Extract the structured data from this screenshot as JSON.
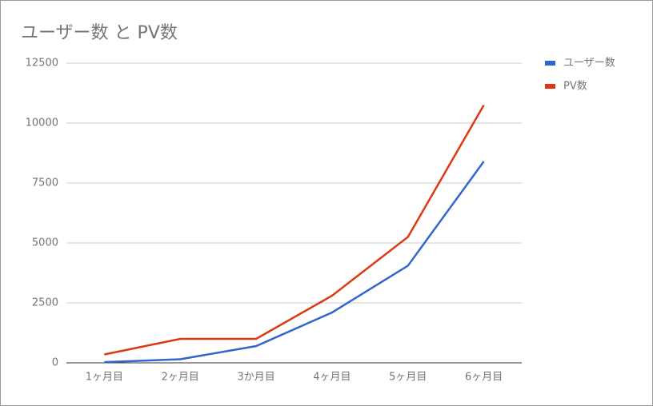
{
  "chart_data": {
    "type": "line",
    "title": "ユーザー数 と PV数",
    "categories": [
      "1ヶ月目",
      "2ヶ月目",
      "3か月目",
      "4ヶ月目",
      "5ヶ月目",
      "6ヶ月目"
    ],
    "series": [
      {
        "name": "ユーザー数",
        "color": "#3366cc",
        "values": [
          30,
          150,
          700,
          2100,
          4050,
          8400
        ]
      },
      {
        "name": "PV数",
        "color": "#dc3912",
        "values": [
          350,
          1000,
          1000,
          2800,
          5250,
          10750
        ]
      }
    ],
    "ylim": [
      0,
      12500
    ],
    "yticks": [
      0,
      2500,
      5000,
      7500,
      10000,
      12500
    ],
    "grid": true,
    "legend": "right"
  }
}
